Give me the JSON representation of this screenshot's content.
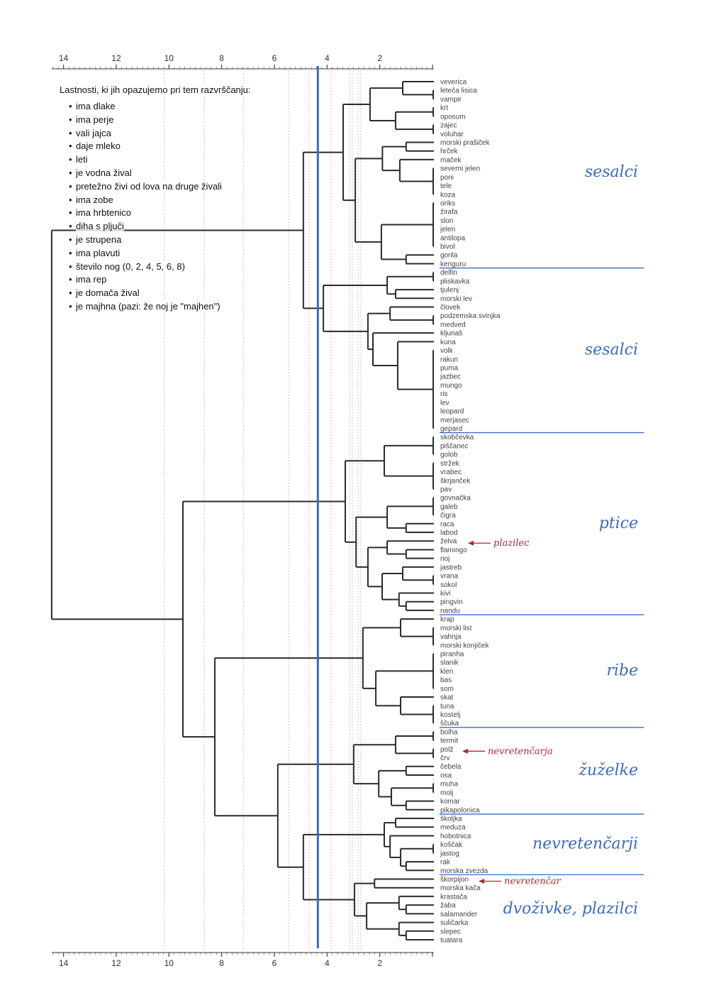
{
  "legend": {
    "title": "Lastnosti, ki jih opazujemo pri tem razvrščanju:",
    "properties": [
      "ima dlake",
      "ima perje",
      "vali jajca",
      "daje mleko",
      "leti",
      "je vodna žival",
      "pretežno živi od lova na druge živali",
      "ima zobe",
      "ima hrbtenico",
      "diha s pljuči",
      "je strupena",
      "ima plavuti",
      "število nog (0, 2, 4, 5, 6, 8)",
      "ima rep",
      "je domača žival",
      "je majhna (pazi: že noj je \"majhen\")"
    ]
  },
  "colors": {
    "accent_blue": "#3b6bc2",
    "annotation_red": "#b3262b",
    "tree": "#2b2b2b",
    "leaf_text": "#444444",
    "grid": "#c8c8c8"
  },
  "chart_data": {
    "type": "dendrogram",
    "axis": {
      "ticks": [
        14,
        12,
        10,
        8,
        6,
        4,
        2
      ],
      "range": [
        0,
        14.5
      ],
      "minor_step": 0.2
    },
    "cut_height": 4.35,
    "reference_heights": [
      10.17,
      8.66,
      7.18,
      5.46,
      4.68,
      3.85,
      3.15,
      3.04,
      2.82,
      2.72
    ],
    "leaves": [
      "veverica",
      "leteča lisica",
      "vampir",
      "krt",
      "oposum",
      "zajec",
      "voluhar",
      "morski prašiček",
      "hrček",
      "maček",
      "severni jelen",
      "poni",
      "tele",
      "koza",
      "oriks",
      "žirafa",
      "slon",
      "jelen",
      "antilopa",
      "bivol",
      "gorila",
      "kenguru",
      "delfin",
      "pliskavka",
      "tjulenj",
      "morski lev",
      "človek",
      "podzemska svinjka",
      "medved",
      "kljunaš",
      "kuna",
      "volk",
      "rakun",
      "puma",
      "jazbec",
      "mungo",
      "ris",
      "lev",
      "leopard",
      "merjasec",
      "gepard",
      "skobčevka",
      "piščanec",
      "golob",
      "stržek",
      "vrabec",
      "škrjanček",
      "pav",
      "govnačka",
      "galeb",
      "čigra",
      "raca",
      "labod",
      "želva",
      "flamingo",
      "noj",
      "jastreb",
      "vrana",
      "sokol",
      "kivi",
      "pingvin",
      "nandu",
      "krap",
      "morski list",
      "vahnja",
      "morski konjiček",
      "piranha",
      "slanik",
      "klen",
      "bas",
      "som",
      "skat",
      "tuna",
      "kostelj",
      "ščuka",
      "bolha",
      "termit",
      "polž",
      "črv",
      "čebela",
      "osa",
      "muha",
      "molj",
      "komar",
      "pikapolonica",
      "školjka",
      "meduza",
      "hobotnica",
      "koščak",
      "jastog",
      "rak",
      "morska zvezda",
      "škorpijon",
      "morska kača",
      "krastača",
      "žaba",
      "salamander",
      "suličarka",
      "slepec",
      "tuatara"
    ],
    "tree": {
      "h": 14.45,
      "c": [
        {
          "h": 4.9,
          "c": [
            {
              "h": 3.39,
              "c": [
                {
                  "h": 2.37,
                  "c": [
                    {
                      "h": 1.13,
                      "c": [
                        0,
                        {
                          "h": 0,
                          "c": [
                            1,
                            2
                          ]
                        }
                      ]
                    },
                    {
                      "h": 1.4,
                      "c": [
                        {
                          "h": 0,
                          "c": [
                            3,
                            4
                          ]
                        },
                        {
                          "h": 0,
                          "c": [
                            5,
                            6
                          ]
                        }
                      ]
                    }
                  ]
                },
                {
                  "h": 2.93,
                  "c": [
                    {
                      "h": 1.9,
                      "c": [
                        {
                          "h": 1.0,
                          "c": [
                            7,
                            8
                          ]
                        },
                        {
                          "h": 1.24,
                          "c": [
                            9,
                            {
                              "h": 0,
                              "c": [
                                10,
                                11,
                                12,
                                13
                              ]
                            }
                          ]
                        }
                      ]
                    },
                    {
                      "h": 1.94,
                      "c": [
                        {
                          "h": 0,
                          "c": [
                            14,
                            15,
                            16,
                            17,
                            18,
                            19
                          ]
                        },
                        {
                          "h": 1.0,
                          "c": [
                            20,
                            21
                          ]
                        }
                      ]
                    }
                  ]
                }
              ]
            },
            {
              "h": 4.14,
              "c": [
                {
                  "h": 1.72,
                  "c": [
                    {
                      "h": 0,
                      "c": [
                        22,
                        23
                      ]
                    },
                    {
                      "h": 1.4,
                      "c": [
                        24,
                        25
                      ]
                    }
                  ]
                },
                {
                  "h": 2.45,
                  "c": [
                    {
                      "h": 1.61,
                      "c": [
                        26,
                        {
                          "h": 0,
                          "c": [
                            27,
                            28
                          ]
                        }
                      ]
                    },
                    {
                      "h": 2.26,
                      "c": [
                        29,
                        {
                          "h": 1.32,
                          "c": [
                            30,
                            {
                              "h": 0,
                              "c": [
                                31,
                                32,
                                33,
                                34,
                                35,
                                36,
                                37,
                                38,
                                39,
                                40
                              ]
                            }
                          ]
                        }
                      ]
                    }
                  ]
                }
              ]
            }
          ]
        },
        {
          "h": 9.47,
          "c": [
            {
              "h": 3.31,
              "c": [
                {
                  "h": 1.83,
                  "c": [
                    {
                      "h": 0,
                      "c": [
                        41,
                        42,
                        43
                      ]
                    },
                    {
                      "h": 0,
                      "c": [
                        44,
                        45,
                        46,
                        47
                      ]
                    }
                  ]
                },
                {
                  "h": 2.9,
                  "c": [
                    {
                      "h": 1.72,
                      "c": [
                        {
                          "h": 0,
                          "c": [
                            48,
                            49,
                            50
                          ]
                        },
                        {
                          "h": 1.0,
                          "c": [
                            51,
                            52
                          ]
                        }
                      ]
                    },
                    {
                      "h": 2.45,
                      "c": [
                        {
                          "h": 1.72,
                          "c": [
                            53,
                            {
                              "h": 1.0,
                              "c": [
                                54,
                                55
                              ]
                            }
                          ]
                        },
                        {
                          "h": 1.91,
                          "c": [
                            {
                              "h": 1.13,
                              "c": [
                                56,
                                {
                                  "h": 0,
                                  "c": [
                                    57,
                                    58
                                  ]
                                }
                              ]
                            },
                            {
                              "h": 1.27,
                              "c": [
                                59,
                                {
                                  "h": 1.0,
                                  "c": [
                                    60,
                                    61
                                  ]
                                }
                              ]
                            }
                          ]
                        }
                      ]
                    }
                  ]
                }
              ]
            },
            {
              "h": 8.26,
              "c": [
                {
                  "h": 2.64,
                  "c": [
                    {
                      "h": 1.21,
                      "c": [
                        62,
                        {
                          "h": 0,
                          "c": [
                            63,
                            64,
                            65
                          ]
                        }
                      ]
                    },
                    {
                      "h": 2.15,
                      "c": [
                        {
                          "h": 0,
                          "c": [
                            66,
                            67,
                            68,
                            69,
                            70
                          ]
                        },
                        {
                          "h": 1.21,
                          "c": [
                            71,
                            {
                              "h": 0,
                              "c": [
                                72,
                                73,
                                74
                              ]
                            }
                          ]
                        }
                      ]
                    }
                  ]
                },
                {
                  "h": 5.87,
                  "c": [
                    {
                      "h": 2.99,
                      "c": [
                        {
                          "h": 1.4,
                          "c": [
                            {
                              "h": 0,
                              "c": [
                                75,
                                76
                              ]
                            },
                            {
                              "h": 0,
                              "c": [
                                77,
                                78
                              ]
                            }
                          ]
                        },
                        {
                          "h": 2.04,
                          "c": [
                            {
                              "h": 1.0,
                              "c": [
                                79,
                                80
                              ]
                            },
                            {
                              "h": 1.56,
                              "c": [
                                {
                                  "h": 0,
                                  "c": [
                                    81,
                                    82
                                  ]
                                },
                                {
                                  "h": 1.0,
                                  "c": [
                                    83,
                                    84
                                  ]
                                }
                              ]
                            }
                          ]
                        }
                      ]
                    },
                    {
                      "h": 4.9,
                      "c": [
                        {
                          "h": 1.83,
                          "c": [
                            {
                              "h": 1.4,
                              "c": [
                                85,
                                86
                              ]
                            },
                            {
                              "h": 1.61,
                              "c": [
                                87,
                                {
                                  "h": 1.21,
                                  "c": [
                                    {
                                      "h": 0,
                                      "c": [
                                        88,
                                        89
                                      ]
                                    },
                                    {
                                      "h": 1.0,
                                      "c": [
                                        90,
                                        91
                                      ]
                                    }
                                  ]
                                }
                              ]
                            }
                          ]
                        },
                        {
                          "h": 2.96,
                          "c": [
                            {
                              "h": 2.2,
                              "c": [
                                92,
                                93
                              ]
                            },
                            {
                              "h": 2.5,
                              "c": [
                                {
                                  "h": 1.27,
                                  "c": [
                                    94,
                                    {
                                      "h": 1.0,
                                      "c": [
                                        95,
                                        96
                                      ]
                                    }
                                  ]
                                },
                                {
                                  "h": 1.27,
                                  "c": [
                                    97,
                                    {
                                      "h": 1.0,
                                      "c": [
                                        98,
                                        99
                                      ]
                                    }
                                  ]
                                }
                              ]
                            }
                          ]
                        }
                      ]
                    }
                  ]
                }
              ]
            }
          ]
        }
      ]
    },
    "groups": [
      {
        "label": "sesalci",
        "first": 0,
        "last": 21
      },
      {
        "label": "sesalci",
        "first": 22,
        "last": 40
      },
      {
        "label": "ptice",
        "first": 41,
        "last": 61
      },
      {
        "label": "ribe",
        "first": 62,
        "last": 74
      },
      {
        "label": "žuželke",
        "first": 75,
        "last": 84
      },
      {
        "label": "nevretenčarji",
        "first": 85,
        "last": 91
      },
      {
        "label": "dvoživke, plazilci",
        "first": 92,
        "last": 99
      }
    ],
    "annotations": [
      {
        "text": "plazilec",
        "leaf": 53
      },
      {
        "text": "nevretenčarja",
        "leaf": 77
      },
      {
        "text": "nevretenčar",
        "leaf": 92
      }
    ]
  }
}
